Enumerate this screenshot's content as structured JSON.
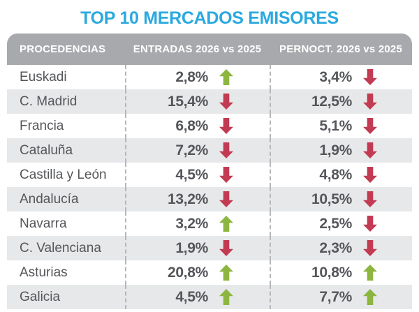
{
  "title": "TOP 10 MERCADOS EMISORES",
  "colors": {
    "title": "#2aa9e0",
    "header_bg": "#a7a9ac",
    "header_text": "#ffffff",
    "row_alt_bg": "#e7e8ea",
    "text": "#54565a",
    "up_arrow": "#8cb63f",
    "down_arrow": "#c23b52"
  },
  "table": {
    "headers": [
      "PROCEDENCIAS",
      "ENTRADAS 2026 vs 2025",
      "PERNOCT. 2026 vs 2025"
    ],
    "rows": [
      {
        "region": "Euskadi",
        "entradas": {
          "value": "2,8%",
          "trend": "up"
        },
        "pernoct": {
          "value": "3,4%",
          "trend": "down"
        }
      },
      {
        "region": "C. Madrid",
        "entradas": {
          "value": "15,4%",
          "trend": "down"
        },
        "pernoct": {
          "value": "12,5%",
          "trend": "down"
        }
      },
      {
        "region": "Francia",
        "entradas": {
          "value": "6,8%",
          "trend": "down"
        },
        "pernoct": {
          "value": "5,1%",
          "trend": "down"
        }
      },
      {
        "region": "Cataluña",
        "entradas": {
          "value": "7,2%",
          "trend": "down"
        },
        "pernoct": {
          "value": "1,9%",
          "trend": "down"
        }
      },
      {
        "region": "Castilla y León",
        "entradas": {
          "value": "4,5%",
          "trend": "down"
        },
        "pernoct": {
          "value": "4,8%",
          "trend": "down"
        }
      },
      {
        "region": "Andalucía",
        "entradas": {
          "value": "13,2%",
          "trend": "down"
        },
        "pernoct": {
          "value": "10,5%",
          "trend": "down"
        }
      },
      {
        "region": "Navarra",
        "entradas": {
          "value": "3,2%",
          "trend": "up"
        },
        "pernoct": {
          "value": "2,5%",
          "trend": "down"
        }
      },
      {
        "region": "C. Valenciana",
        "entradas": {
          "value": "1,9%",
          "trend": "down"
        },
        "pernoct": {
          "value": "2,3%",
          "trend": "down"
        }
      },
      {
        "region": "Asturias",
        "entradas": {
          "value": "20,8%",
          "trend": "up"
        },
        "pernoct": {
          "value": "10,8%",
          "trend": "up"
        }
      },
      {
        "region": "Galicia",
        "entradas": {
          "value": "4,5%",
          "trend": "up"
        },
        "pernoct": {
          "value": "7,7%",
          "trend": "up"
        }
      }
    ]
  },
  "chart_data": {
    "type": "table",
    "title": "TOP 10 MERCADOS EMISORES",
    "columns": [
      "PROCEDENCIAS",
      "ENTRADAS 2026 vs 2025",
      "PERNOCT. 2026 vs 2025"
    ],
    "rows": [
      {
        "procedencia": "Euskadi",
        "entradas_pct": 2.8,
        "entradas_trend": "up",
        "pernoct_pct": 3.4,
        "pernoct_trend": "down"
      },
      {
        "procedencia": "C. Madrid",
        "entradas_pct": 15.4,
        "entradas_trend": "down",
        "pernoct_pct": 12.5,
        "pernoct_trend": "down"
      },
      {
        "procedencia": "Francia",
        "entradas_pct": 6.8,
        "entradas_trend": "down",
        "pernoct_pct": 5.1,
        "pernoct_trend": "down"
      },
      {
        "procedencia": "Cataluña",
        "entradas_pct": 7.2,
        "entradas_trend": "down",
        "pernoct_pct": 1.9,
        "pernoct_trend": "down"
      },
      {
        "procedencia": "Castilla y León",
        "entradas_pct": 4.5,
        "entradas_trend": "down",
        "pernoct_pct": 4.8,
        "pernoct_trend": "down"
      },
      {
        "procedencia": "Andalucía",
        "entradas_pct": 13.2,
        "entradas_trend": "down",
        "pernoct_pct": 10.5,
        "pernoct_trend": "down"
      },
      {
        "procedencia": "Navarra",
        "entradas_pct": 3.2,
        "entradas_trend": "up",
        "pernoct_pct": 2.5,
        "pernoct_trend": "down"
      },
      {
        "procedencia": "C. Valenciana",
        "entradas_pct": 1.9,
        "entradas_trend": "down",
        "pernoct_pct": 2.3,
        "pernoct_trend": "down"
      },
      {
        "procedencia": "Asturias",
        "entradas_pct": 20.8,
        "entradas_trend": "up",
        "pernoct_pct": 10.8,
        "pernoct_trend": "up"
      },
      {
        "procedencia": "Galicia",
        "entradas_pct": 4.5,
        "entradas_trend": "up",
        "pernoct_pct": 7.7,
        "pernoct_trend": "up"
      }
    ],
    "notes": "Percentages use Spanish comma decimals; green up arrow = increase, red down arrow = decrease."
  }
}
